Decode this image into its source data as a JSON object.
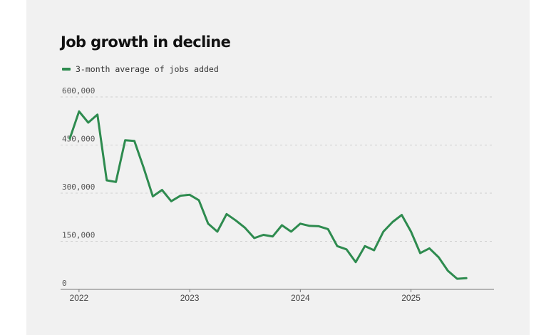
{
  "colors": {
    "series": "#2e8b4f",
    "grid": "#cfcfcf",
    "axis": "#777777",
    "background": "#f1f1f1"
  },
  "chart_data": {
    "type": "line",
    "title": "Job growth in decline",
    "legend_position": "top-left",
    "grid": true,
    "x_unit": "months since Jan 2022",
    "xlim": [
      "2021-11",
      "2025-10"
    ],
    "ylim": [
      0,
      600000
    ],
    "yticks": [
      0,
      150000,
      300000,
      450000,
      600000
    ],
    "ytick_labels": [
      "0",
      "150,000",
      "300,000",
      "450,000",
      "600,000"
    ],
    "xticks": [
      "2022-01",
      "2023-01",
      "2024-01",
      "2025-01"
    ],
    "xtick_labels": [
      "2022",
      "2023",
      "2024",
      "2025"
    ],
    "series": [
      {
        "name": "3-month average of jobs added",
        "color": "#2e8b4f",
        "points": [
          [
            "2021-12",
            470000
          ],
          [
            "2022-01",
            555000
          ],
          [
            "2022-02",
            520000
          ],
          [
            "2022-03",
            545000
          ],
          [
            "2022-04",
            340000
          ],
          [
            "2022-05",
            335000
          ],
          [
            "2022-06",
            465000
          ],
          [
            "2022-07",
            463000
          ],
          [
            "2022-08",
            380000
          ],
          [
            "2022-09",
            290000
          ],
          [
            "2022-10",
            310000
          ],
          [
            "2022-11",
            275000
          ],
          [
            "2022-12",
            292000
          ],
          [
            "2023-01",
            295000
          ],
          [
            "2023-02",
            278000
          ],
          [
            "2023-03",
            205000
          ],
          [
            "2023-04",
            180000
          ],
          [
            "2023-05",
            235000
          ],
          [
            "2023-06",
            215000
          ],
          [
            "2023-07",
            192000
          ],
          [
            "2023-08",
            160000
          ],
          [
            "2023-09",
            170000
          ],
          [
            "2023-10",
            165000
          ],
          [
            "2023-11",
            200000
          ],
          [
            "2023-12",
            180000
          ],
          [
            "2024-01",
            205000
          ],
          [
            "2024-02",
            198000
          ],
          [
            "2024-03",
            197000
          ],
          [
            "2024-04",
            188000
          ],
          [
            "2024-05",
            135000
          ],
          [
            "2024-06",
            125000
          ],
          [
            "2024-07",
            85000
          ],
          [
            "2024-08",
            135000
          ],
          [
            "2024-09",
            122000
          ],
          [
            "2024-10",
            180000
          ],
          [
            "2024-11",
            210000
          ],
          [
            "2024-12",
            232000
          ],
          [
            "2025-01",
            180000
          ],
          [
            "2025-02",
            113000
          ],
          [
            "2025-03",
            128000
          ],
          [
            "2025-04",
            100000
          ],
          [
            "2025-05",
            58000
          ],
          [
            "2025-06",
            33000
          ],
          [
            "2025-07",
            35000
          ]
        ]
      }
    ]
  }
}
